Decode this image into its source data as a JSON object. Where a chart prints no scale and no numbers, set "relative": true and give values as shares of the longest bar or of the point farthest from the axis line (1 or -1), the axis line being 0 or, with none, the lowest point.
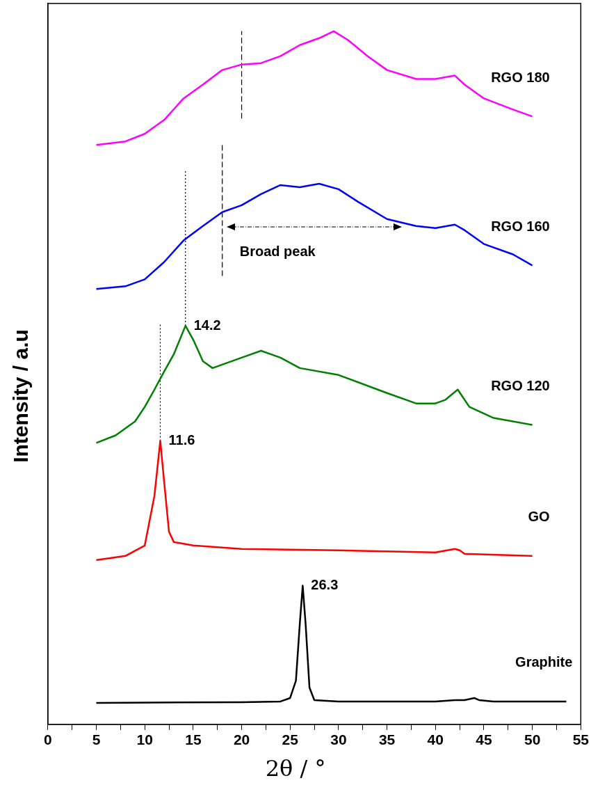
{
  "chart_data": {
    "type": "line",
    "relative": true,
    "xlabel": "2θ / °",
    "ylabel": "Intensity / a.u",
    "xlim": [
      0,
      55
    ],
    "xticks": [
      0,
      {
        "value": 2.5,
        "label": null
      },
      5,
      {
        "value": 7.5,
        "label": null
      },
      10,
      {
        "value": 12.5,
        "label": null
      },
      15,
      {
        "value": 17.5,
        "label": null
      },
      20,
      {
        "value": 22.5,
        "label": null
      },
      25,
      {
        "value": 27.5,
        "label": null
      },
      30,
      {
        "value": 32.5,
        "label": null
      },
      35,
      {
        "value": 37.5,
        "label": null
      },
      40,
      {
        "value": 42.5,
        "label": null
      },
      45,
      {
        "value": 47.5,
        "label": null
      },
      50,
      {
        "value": 52.5,
        "label": null
      },
      55
    ],
    "grid": false,
    "legend": false,
    "marker": "none",
    "line_style": "solid",
    "series": [
      {
        "name": "Graphite",
        "color": "#000000",
        "x": [
          5,
          20,
          24,
          25,
          25.6,
          26,
          26.3,
          26.6,
          27,
          27.5,
          30,
          40,
          42,
          43,
          44,
          44.5,
          46,
          53.5
        ],
        "values": [
          0.031,
          0.032,
          0.033,
          0.038,
          0.063,
          0.145,
          0.2,
          0.145,
          0.053,
          0.035,
          0.033,
          0.033,
          0.035,
          0.035,
          0.038,
          0.035,
          0.033,
          0.033
        ]
      },
      {
        "name": "GO",
        "color": "#ff0000",
        "x": [
          5,
          8,
          10,
          11,
          11.6,
          12,
          12.5,
          13,
          15,
          20,
          30,
          40,
          42,
          42.5,
          43,
          50
        ],
        "values": [
          0.237,
          0.243,
          0.258,
          0.33,
          0.409,
          0.35,
          0.278,
          0.263,
          0.258,
          0.253,
          0.251,
          0.248,
          0.253,
          0.251,
          0.246,
          0.243
        ]
      },
      {
        "name": "RGO 120",
        "color": "#008000",
        "x": [
          5,
          7,
          9,
          10,
          11,
          12,
          13,
          14.2,
          15,
          16,
          17,
          18,
          20,
          22,
          24,
          26,
          30,
          35,
          38,
          40,
          41,
          42.3,
          43.5,
          46,
          50
        ],
        "values": [
          0.406,
          0.417,
          0.437,
          0.458,
          0.483,
          0.509,
          0.534,
          0.575,
          0.555,
          0.524,
          0.514,
          0.519,
          0.529,
          0.539,
          0.529,
          0.514,
          0.504,
          0.478,
          0.463,
          0.463,
          0.468,
          0.483,
          0.458,
          0.442,
          0.432
        ]
      },
      {
        "name": "RGO 160",
        "color": "#0000ff",
        "x": [
          5,
          8,
          10,
          12,
          14,
          16,
          18,
          20,
          22,
          24,
          26,
          28,
          30,
          32,
          35,
          38,
          40,
          42,
          43,
          45,
          48,
          50
        ],
        "values": [
          0.628,
          0.632,
          0.642,
          0.667,
          0.698,
          0.719,
          0.739,
          0.749,
          0.765,
          0.778,
          0.775,
          0.78,
          0.772,
          0.754,
          0.729,
          0.719,
          0.716,
          0.721,
          0.713,
          0.693,
          0.678,
          0.662
        ]
      },
      {
        "name": "RGO 180",
        "color": "#ff00ff",
        "x": [
          5,
          8,
          10,
          12,
          14,
          16,
          18,
          20,
          22,
          24,
          26,
          28,
          29.5,
          31,
          33,
          35,
          38,
          40,
          42,
          43,
          45,
          48,
          50
        ],
        "values": [
          0.836,
          0.841,
          0.852,
          0.872,
          0.903,
          0.923,
          0.944,
          0.952,
          0.954,
          0.964,
          0.98,
          0.99,
          1,
          0.987,
          0.964,
          0.944,
          0.931,
          0.931,
          0.936,
          0.923,
          0.903,
          0.887,
          0.877
        ]
      },
      {
        "color": "#000000",
        "line_style": "dotted",
        "x": [
          11.6,
          11.6
        ],
        "values": [
          0.409,
          0.577
        ]
      },
      {
        "color": "#000000",
        "line_style": "dotted",
        "x": [
          14.2,
          14.2
        ],
        "values": [
          0.575,
          0.798
        ]
      },
      {
        "color": "#000000",
        "line_style": "dashed",
        "x": [
          18,
          18
        ],
        "values": [
          0.647,
          0.836
        ]
      },
      {
        "color": "#000000",
        "line_style": "dashed",
        "x": [
          20,
          20
        ],
        "values": [
          0.874,
          1
        ]
      }
    ],
    "annotations": [
      {
        "text": "26.3",
        "x": 26.3,
        "y": 0.2
      },
      {
        "text": "11.6",
        "x": 11.6,
        "y": 0.409
      },
      {
        "text": "14.2",
        "x": 14.2,
        "y": 0.575
      },
      "Broad peak"
    ]
  }
}
